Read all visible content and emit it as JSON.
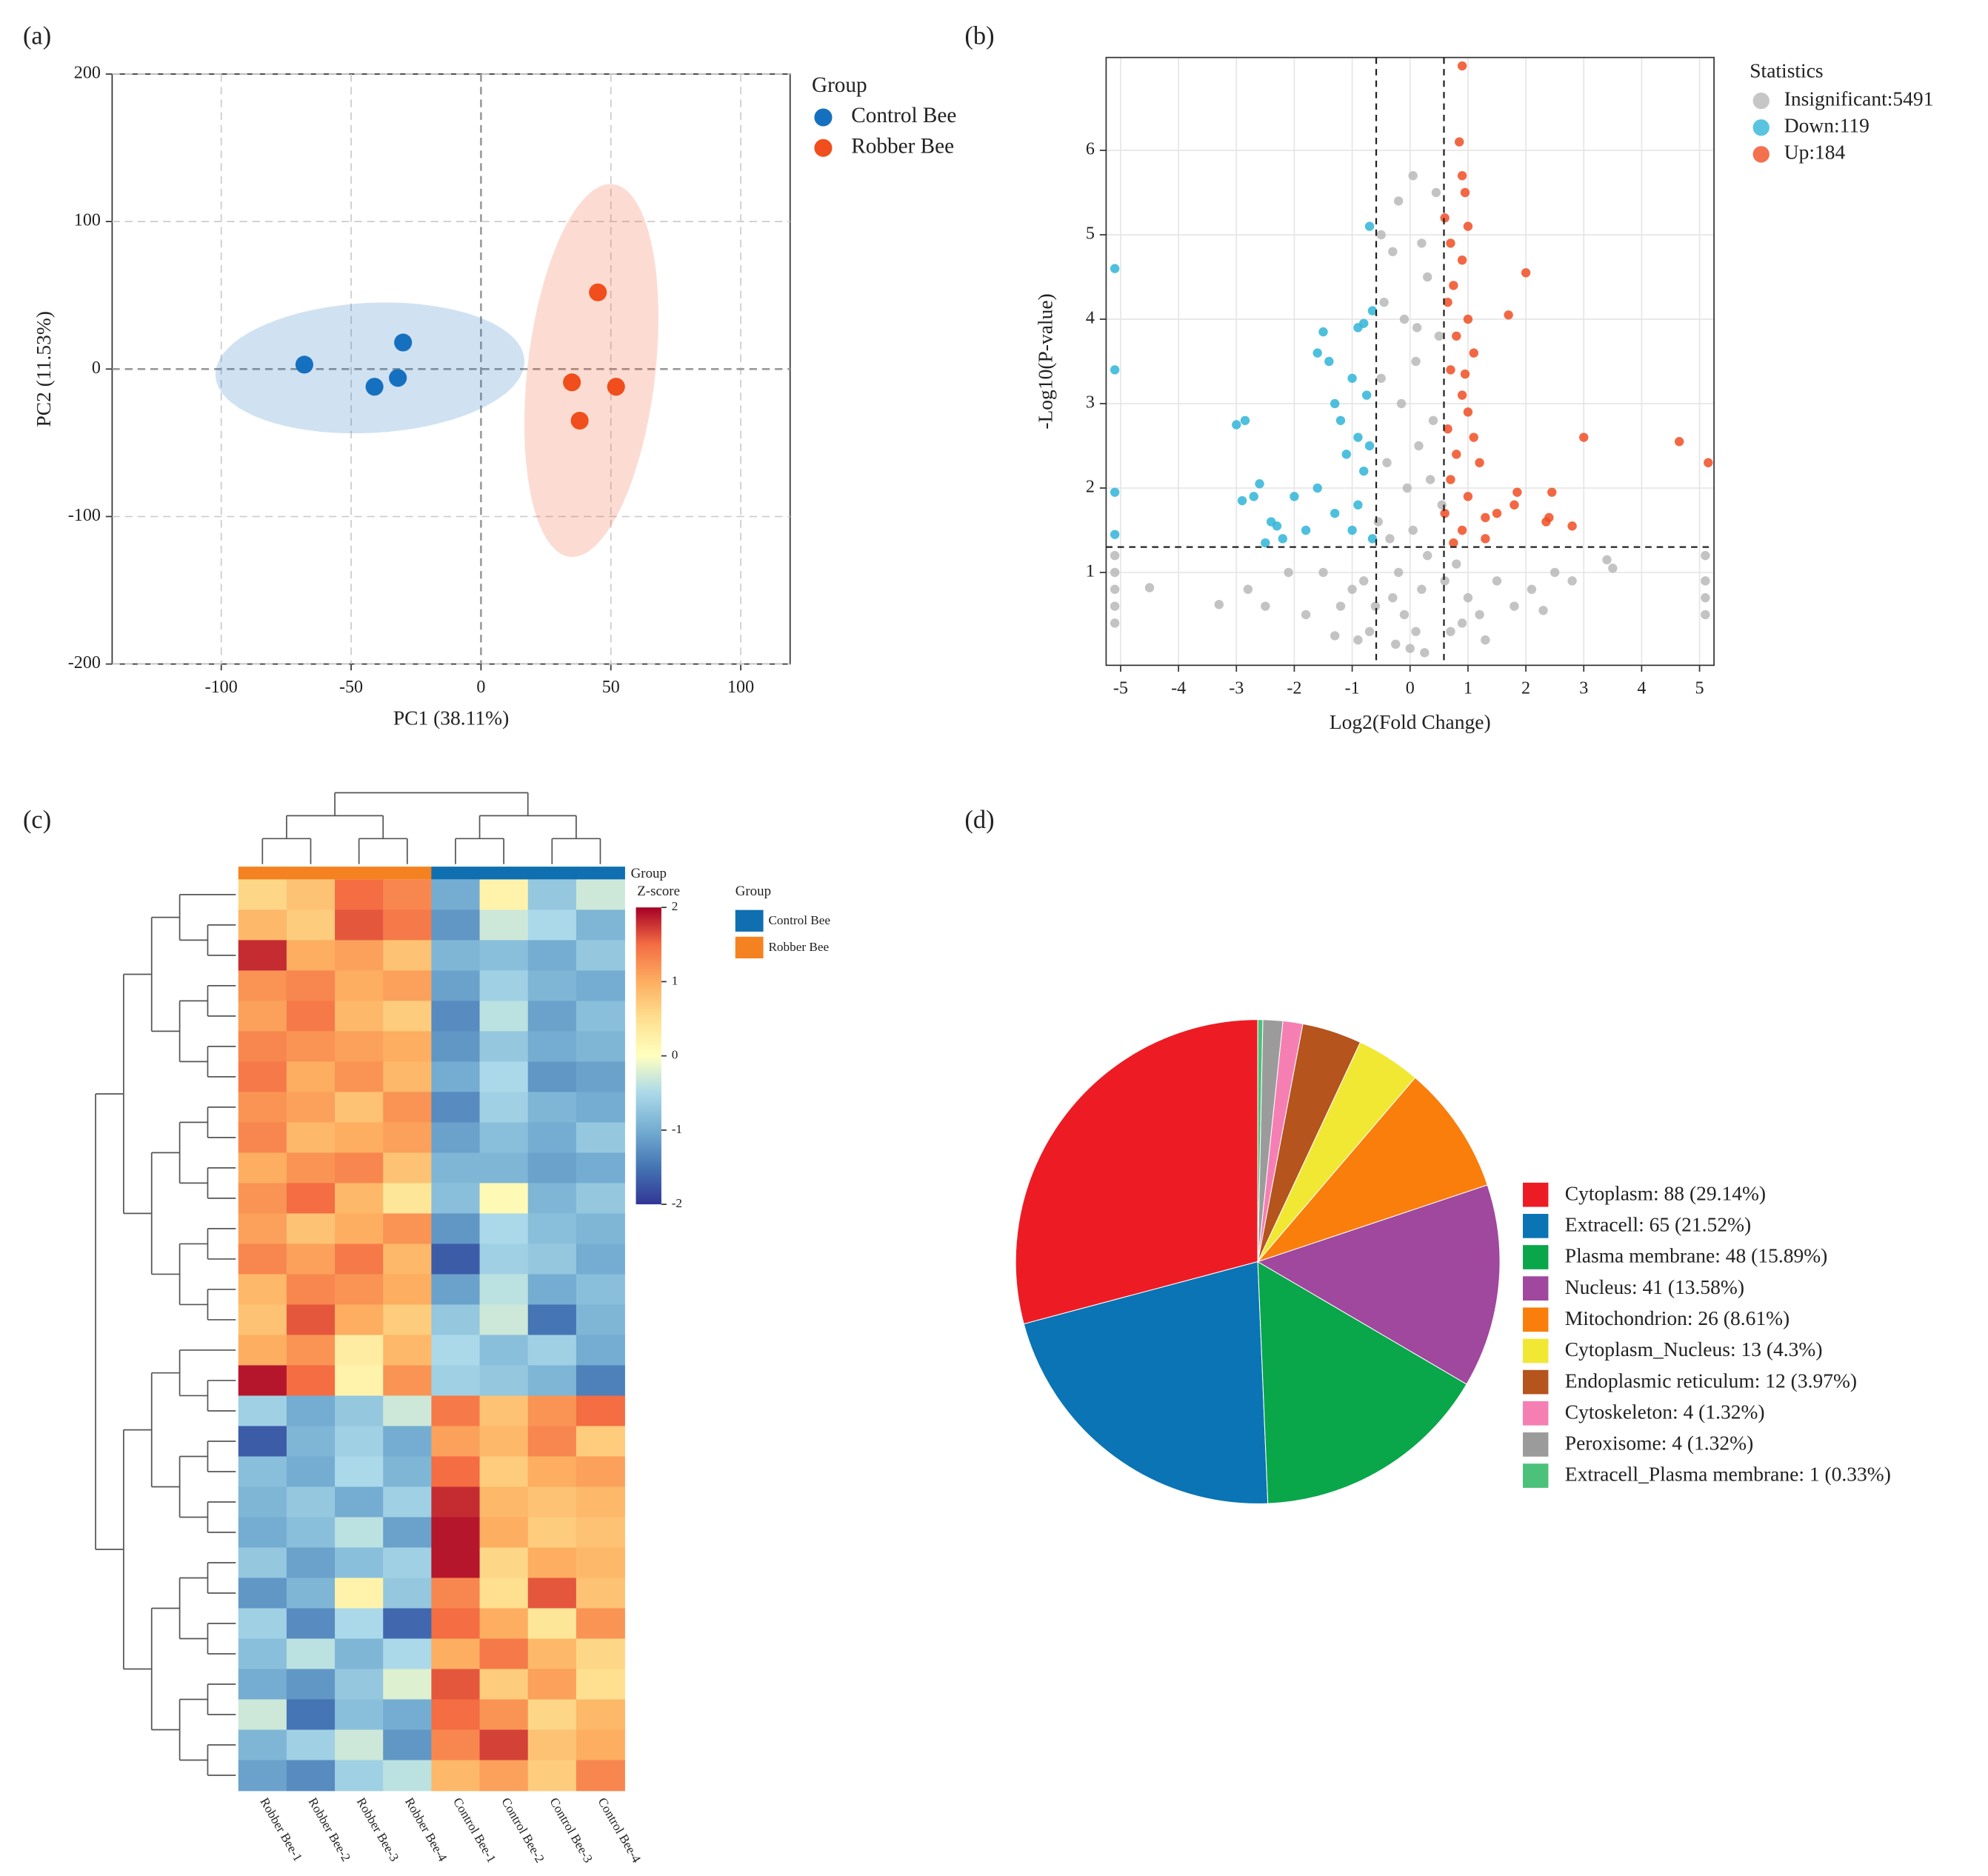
{
  "chart_data": [
    {
      "type": "pca",
      "label": "(a)",
      "xlabel": "PC1 (38.11%)",
      "ylabel": "PC2 (11.53%)",
      "xlim": [
        -142,
        119
      ],
      "ylim": [
        -200,
        200
      ],
      "xticks": [
        -100,
        -50,
        0,
        50,
        100
      ],
      "yticks": [
        -200,
        -100,
        0,
        100,
        200
      ],
      "grid": true,
      "ellipses": true,
      "legend_title": "Group",
      "series": [
        {
          "name": "Control Bee",
          "color": "#1670c0",
          "x": [
            -68,
            -41,
            -32,
            -30
          ],
          "y": [
            3,
            -12,
            -6,
            18
          ]
        },
        {
          "name": "Robber Bee",
          "color": "#f04e1c",
          "x": [
            45,
            35,
            52,
            38
          ],
          "y": [
            52,
            -9,
            -12,
            -35
          ]
        }
      ]
    },
    {
      "type": "volcano",
      "label": "(b)",
      "xlabel": "Log2(Fold Change)",
      "ylabel": "-Log10(P-value)",
      "xlim": [
        -5.25,
        5.25
      ],
      "ylim": [
        -0.1,
        7.1
      ],
      "xticks": [
        -5,
        -4,
        -3,
        -2,
        -1,
        0,
        1,
        2,
        3,
        4,
        5
      ],
      "yticks": [
        1,
        2,
        3,
        4,
        5,
        6
      ],
      "grid": true,
      "legend_title": "Statistics",
      "vlines": [
        -0.585,
        0.585
      ],
      "hline": 1.301,
      "series": [
        {
          "name": "Insignificant:5491",
          "color": "#b8b8b8",
          "x": [
            0,
            0.1,
            -0.1,
            0.2,
            -0.2,
            0.05,
            -0.05,
            0.15,
            -0.15,
            0.1,
            -0.1,
            0.3,
            -0.3,
            0.05,
            0.45,
            -0.45,
            0.5,
            -0.5,
            0.4,
            -0.4,
            0.55,
            -0.55,
            0.3,
            -0.3,
            0.6,
            -0.6,
            0.8,
            -0.8,
            1.0,
            -1.0,
            1.2,
            -1.2,
            1.5,
            -1.5,
            1.8,
            -1.8,
            2.1,
            -2.1,
            2.3,
            -2.5,
            2.5,
            2.8,
            -2.8,
            3.5,
            3.4,
            -3.3,
            -4.5,
            -5.1,
            -5.1,
            -5.1,
            -5.1,
            -5.1,
            5.1,
            5.1,
            5.1,
            5.1,
            0.7,
            -0.7,
            0.25,
            -0.25,
            0.9,
            -0.9,
            1.3,
            -1.3,
            0.2,
            -0.2,
            0.35,
            -0.35,
            0.12,
            -0.5
          ],
          "y": [
            0.1,
            0.3,
            0.5,
            0.8,
            1.0,
            1.5,
            2.0,
            2.5,
            3.0,
            3.5,
            4.0,
            4.5,
            4.8,
            5.7,
            5.5,
            4.2,
            3.8,
            3.3,
            2.8,
            2.3,
            1.8,
            1.6,
            1.2,
            0.7,
            0.9,
            0.6,
            1.1,
            0.9,
            0.7,
            0.8,
            0.5,
            0.6,
            0.9,
            1.0,
            0.6,
            0.5,
            0.8,
            1.0,
            0.55,
            0.6,
            1.0,
            0.9,
            0.8,
            1.05,
            1.15,
            0.62,
            0.82,
            1.2,
            1.0,
            0.8,
            0.6,
            0.4,
            1.2,
            0.9,
            0.7,
            0.5,
            0.3,
            0.3,
            0.05,
            0.15,
            0.4,
            0.2,
            0.2,
            0.25,
            4.9,
            5.4,
            2.1,
            1.4,
            3.9,
            5.0
          ]
        },
        {
          "name": "Down:119",
          "color": "#2fb5d8",
          "x": [
            -5.1,
            -5.1,
            -5.1,
            -5.1,
            -3.0,
            -2.85,
            -2.7,
            -2.6,
            -2.9,
            -2.4,
            -2.3,
            -2.0,
            -1.8,
            -1.6,
            -1.5,
            -1.6,
            -1.4,
            -1.3,
            -1.2,
            -1.0,
            -0.9,
            -0.8,
            -0.7,
            -0.65,
            -0.7,
            -0.8,
            -0.9,
            -1.1,
            -0.75,
            -1.0,
            -1.3,
            -2.5,
            -2.2,
            -0.9,
            -0.65
          ],
          "y": [
            4.6,
            3.4,
            1.95,
            1.45,
            2.75,
            2.8,
            1.9,
            2.05,
            1.85,
            1.6,
            1.55,
            1.9,
            1.5,
            2.0,
            3.85,
            3.6,
            3.5,
            3.0,
            2.8,
            3.3,
            3.9,
            3.95,
            5.1,
            4.1,
            2.5,
            2.2,
            1.8,
            2.4,
            3.1,
            1.5,
            1.7,
            1.35,
            1.4,
            2.6,
            1.4
          ]
        },
        {
          "name": "Up:184",
          "color": "#f04e23",
          "x": [
            0.9,
            0.85,
            0.9,
            0.95,
            0.6,
            0.7,
            1.0,
            0.9,
            0.75,
            0.65,
            1.0,
            0.8,
            1.1,
            0.7,
            0.9,
            1.0,
            0.65,
            0.8,
            1.2,
            0.7,
            1.0,
            0.6,
            0.9,
            1.3,
            0.75,
            2.0,
            1.7,
            3.0,
            4.65,
            5.15,
            2.45,
            2.4,
            2.35,
            2.8,
            1.8,
            1.85,
            1.5,
            1.3,
            1.1,
            0.95
          ],
          "y": [
            7.0,
            6.1,
            5.7,
            5.5,
            5.2,
            4.9,
            5.1,
            4.7,
            4.4,
            4.2,
            4.0,
            3.8,
            3.6,
            3.4,
            3.1,
            2.9,
            2.7,
            2.4,
            2.3,
            2.1,
            1.9,
            1.7,
            1.5,
            1.4,
            1.35,
            4.55,
            4.05,
            2.6,
            2.55,
            2.3,
            1.95,
            1.65,
            1.6,
            1.55,
            1.8,
            1.95,
            1.7,
            1.65,
            2.6,
            3.35
          ]
        }
      ]
    },
    {
      "type": "heatmap",
      "label": "(c)",
      "group_bar_label": "Group",
      "colorbar_title": "Z-score",
      "zlim": [
        -2,
        2
      ],
      "zticks": [
        2,
        1,
        0,
        -1,
        -2
      ],
      "columns": [
        "Robber Bee-1",
        "Robber Bee-2",
        "Robber Bee-3",
        "Robber Bee-4",
        "Control Bee-1",
        "Control Bee-2",
        "Control Bee-3",
        "Control Bee-4"
      ],
      "group_colors": [
        "#f58220",
        "#f58220",
        "#f58220",
        "#f58220",
        "#0f6fb0",
        "#0f6fb0",
        "#0f6fb0",
        "#0f6fb0"
      ],
      "legend_title": "Group",
      "legend": [
        {
          "name": "Control Bee",
          "color": "#0f6fb0"
        },
        {
          "name": "Robber Bee",
          "color": "#f58220"
        }
      ],
      "values": [
        [
          0.6,
          0.8,
          1.5,
          1.3,
          -1.0,
          0.2,
          -0.7,
          -0.3
        ],
        [
          0.9,
          0.7,
          1.6,
          1.4,
          -1.2,
          -0.3,
          -0.5,
          -0.9
        ],
        [
          1.8,
          1.0,
          1.1,
          0.8,
          -0.9,
          -0.8,
          -1.0,
          -0.7
        ],
        [
          1.2,
          1.3,
          1.0,
          1.1,
          -1.1,
          -0.6,
          -0.9,
          -1.0
        ],
        [
          1.1,
          1.4,
          0.9,
          0.7,
          -1.3,
          -0.4,
          -1.1,
          -0.8
        ],
        [
          1.3,
          1.2,
          1.1,
          1.0,
          -1.2,
          -0.7,
          -1.0,
          -0.9
        ],
        [
          1.4,
          1.0,
          1.2,
          0.9,
          -1.0,
          -0.5,
          -1.2,
          -1.1
        ],
        [
          1.2,
          1.1,
          0.8,
          1.2,
          -1.3,
          -0.6,
          -0.9,
          -1.0
        ],
        [
          1.3,
          0.9,
          1.0,
          1.1,
          -1.1,
          -0.8,
          -1.0,
          -0.7
        ],
        [
          1.0,
          1.2,
          1.3,
          0.8,
          -0.9,
          -0.9,
          -1.1,
          -1.0
        ],
        [
          1.2,
          1.5,
          0.9,
          0.4,
          -0.8,
          0.1,
          -0.9,
          -0.7
        ],
        [
          1.1,
          0.8,
          1.0,
          1.2,
          -1.2,
          -0.5,
          -0.8,
          -0.9
        ],
        [
          1.3,
          1.1,
          1.4,
          0.9,
          -1.7,
          -0.6,
          -0.7,
          -1.0
        ],
        [
          0.9,
          1.3,
          1.2,
          1.0,
          -1.1,
          -0.4,
          -1.0,
          -0.8
        ],
        [
          0.8,
          1.6,
          1.0,
          0.7,
          -0.7,
          -0.3,
          -1.5,
          -0.9
        ],
        [
          1.0,
          1.2,
          0.3,
          0.9,
          -0.5,
          -0.8,
          -0.6,
          -1.0
        ],
        [
          1.9,
          1.5,
          0.2,
          1.2,
          -0.6,
          -0.7,
          -0.9,
          -1.4
        ],
        [
          -0.6,
          -1.0,
          -0.7,
          -0.3,
          1.4,
          0.8,
          1.2,
          1.5
        ],
        [
          -1.7,
          -0.9,
          -0.6,
          -1.0,
          1.1,
          0.9,
          1.3,
          0.7
        ],
        [
          -0.8,
          -1.0,
          -0.5,
          -0.9,
          1.5,
          0.7,
          1.0,
          1.1
        ],
        [
          -0.9,
          -0.7,
          -1.0,
          -0.6,
          1.8,
          0.9,
          0.8,
          0.9
        ],
        [
          -1.0,
          -0.8,
          -0.4,
          -1.1,
          1.9,
          1.0,
          0.7,
          0.8
        ],
        [
          -0.7,
          -1.1,
          -0.8,
          -0.6,
          1.9,
          0.6,
          1.0,
          0.9
        ],
        [
          -1.2,
          -0.9,
          0.2,
          -0.7,
          1.3,
          0.5,
          1.6,
          0.8
        ],
        [
          -0.6,
          -1.3,
          -0.5,
          -1.6,
          1.5,
          1.0,
          0.4,
          1.2
        ],
        [
          -0.8,
          -0.4,
          -0.9,
          -0.5,
          1.0,
          1.4,
          0.9,
          0.6
        ],
        [
          -1.0,
          -1.2,
          -0.7,
          -0.2,
          1.6,
          0.7,
          1.1,
          0.5
        ],
        [
          -0.3,
          -1.5,
          -0.8,
          -1.0,
          1.5,
          1.2,
          0.6,
          0.9
        ],
        [
          -0.9,
          -0.6,
          -0.3,
          -1.2,
          1.3,
          1.7,
          0.8,
          1.0
        ],
        [
          -1.1,
          -1.3,
          -0.6,
          -0.4,
          0.9,
          1.1,
          0.7,
          1.3
        ]
      ]
    },
    {
      "type": "pie",
      "label": "(d)",
      "categories": [
        "Cytoplasm: 88 (29.14%)",
        "Extracell: 65 (21.52%)",
        "Plasma membrane: 48 (15.89%)",
        "Nucleus: 41 (13.58%)",
        "Mitochondrion: 26 (8.61%)",
        "Cytoplasm_Nucleus: 13 (4.3%)",
        "Endoplasmic reticulum: 12 (3.97%)",
        "Cytoskeleton: 4 (1.32%)",
        "Peroxisome: 4 (1.32%)",
        "Extracell_Plasma membrane: 1 (0.33%)"
      ],
      "values": [
        88,
        65,
        48,
        41,
        26,
        13,
        12,
        4,
        4,
        1
      ],
      "colors": [
        "#ed1c24",
        "#0a74b4",
        "#0aa64a",
        "#a0479e",
        "#f97e0b",
        "#f0e833",
        "#b5541d",
        "#f57fb3",
        "#9b9b9b",
        "#4cc17a"
      ]
    }
  ]
}
